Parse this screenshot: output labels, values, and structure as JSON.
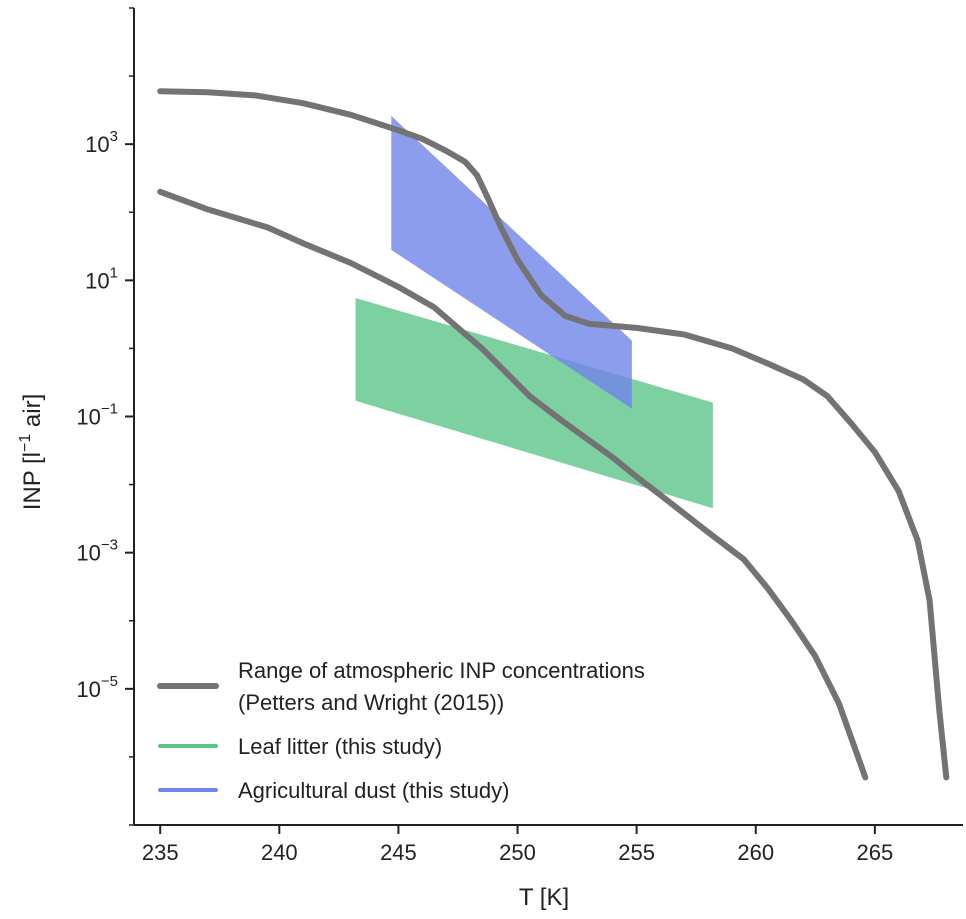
{
  "chart_data": {
    "type": "line",
    "title": "",
    "xlabel": "T [K]",
    "ylabel": "INP [l⁻¹ air]",
    "xscale": "linear",
    "yscale": "log",
    "xlim": [
      233.9,
      268.7
    ],
    "ylim": [
      1e-07,
      100000.0
    ],
    "xticks": [
      {
        "value": 235,
        "label": "235"
      },
      {
        "value": 240,
        "label": "240"
      },
      {
        "value": 245,
        "label": "245"
      },
      {
        "value": 250,
        "label": "250"
      },
      {
        "value": 255,
        "label": "255"
      },
      {
        "value": 260,
        "label": "260"
      },
      {
        "value": 265,
        "label": "265"
      }
    ],
    "yticks": [
      {
        "value": 1e-05,
        "base": "10",
        "exp": "−5"
      },
      {
        "value": 0.001,
        "base": "10",
        "exp": "−3"
      },
      {
        "value": 0.1,
        "base": "10",
        "exp": "−1"
      },
      {
        "value": 10,
        "base": "10",
        "exp": "1"
      },
      {
        "value": 1000,
        "base": "10",
        "exp": "3"
      }
    ],
    "grid": false,
    "legend_position": "lower-left",
    "legend": [
      {
        "label_lines": [
          "Range of atmospheric INP concentrations",
          "(Petters and Wright (2015))"
        ],
        "color": "#737373",
        "key": "petters"
      },
      {
        "label_lines": [
          "Leaf litter (this study)"
        ],
        "color": "#5cc689",
        "key": "leaf"
      },
      {
        "label_lines": [
          "Agricultural dust (this study)"
        ],
        "color": "#7185ea",
        "key": "dust"
      }
    ],
    "series": [
      {
        "key": "upper_bound",
        "kind": "line",
        "color": "#737373",
        "points": [
          [
            235.0,
            6000
          ],
          [
            237.0,
            5800
          ],
          [
            239.0,
            5200
          ],
          [
            241.0,
            4000
          ],
          [
            243.0,
            2700
          ],
          [
            245.0,
            1600
          ],
          [
            246.0,
            1200
          ],
          [
            247.0,
            800
          ],
          [
            247.8,
            550
          ],
          [
            248.3,
            350
          ],
          [
            248.8,
            150
          ],
          [
            249.3,
            60
          ],
          [
            250.0,
            20
          ],
          [
            251.0,
            6
          ],
          [
            252.0,
            3
          ],
          [
            253.0,
            2.3
          ],
          [
            255.0,
            2
          ],
          [
            257.0,
            1.6
          ],
          [
            259.0,
            1.0
          ],
          [
            260.5,
            0.6
          ],
          [
            262.0,
            0.35
          ],
          [
            263.0,
            0.2
          ],
          [
            264.0,
            0.08
          ],
          [
            265.0,
            0.03
          ],
          [
            266.0,
            0.008
          ],
          [
            266.8,
            0.0015
          ],
          [
            267.3,
            0.0002
          ],
          [
            267.7,
            5e-06
          ],
          [
            268.0,
            5e-07
          ]
        ]
      },
      {
        "key": "lower_bound",
        "kind": "line",
        "color": "#737373",
        "points": [
          [
            235.0,
            200
          ],
          [
            237.0,
            110
          ],
          [
            239.5,
            60
          ],
          [
            241.0,
            35
          ],
          [
            243.0,
            18
          ],
          [
            245.0,
            8
          ],
          [
            246.5,
            4
          ],
          [
            247.5,
            2
          ],
          [
            248.5,
            1.0
          ],
          [
            249.5,
            0.45
          ],
          [
            250.5,
            0.2
          ],
          [
            252.0,
            0.08
          ],
          [
            254.0,
            0.025
          ],
          [
            255.0,
            0.013
          ],
          [
            256.0,
            0.007
          ],
          [
            258.0,
            0.002
          ],
          [
            259.5,
            0.0008
          ],
          [
            260.5,
            0.0003
          ],
          [
            261.5,
            0.0001
          ],
          [
            262.5,
            3e-05
          ],
          [
            263.5,
            6e-06
          ],
          [
            264.6,
            5e-07
          ]
        ]
      },
      {
        "key": "leaf_litter",
        "kind": "band",
        "color": "#5cc689",
        "x": [
          243.2,
          258.2
        ],
        "upper": [
          5.5,
          0.16
        ],
        "lower": [
          0.17,
          0.0045
        ]
      },
      {
        "key": "agricultural_dust",
        "kind": "band",
        "color": "#7185ea",
        "x": [
          244.7,
          254.8
        ],
        "upper": [
          2600,
          1.3
        ],
        "lower": [
          28,
          0.13
        ]
      }
    ]
  }
}
